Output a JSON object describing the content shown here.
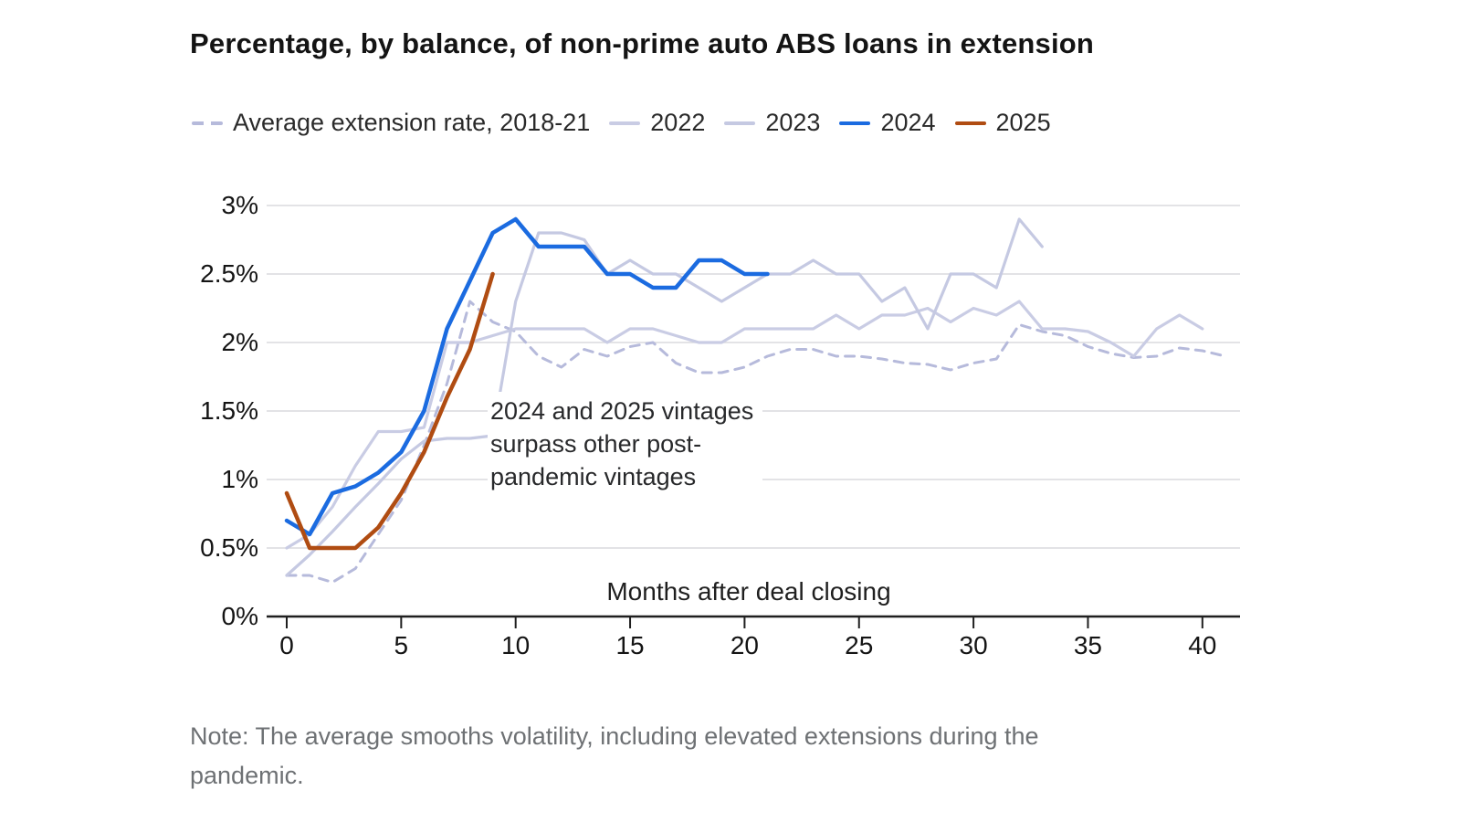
{
  "title": "Percentage, by balance, of non-prime auto ABS loans in extension",
  "legend": {
    "items": [
      {
        "label": "Average extension rate, 2018-21",
        "color": "#b6badb",
        "style": "dashed"
      },
      {
        "label": "2022",
        "color": "#c9cce4",
        "style": "solid"
      },
      {
        "label": "2023",
        "color": "#c5c9e2",
        "style": "solid"
      },
      {
        "label": "2024",
        "color": "#1b6be0",
        "style": "solid"
      },
      {
        "label": "2025",
        "color": "#b04c12",
        "style": "solid"
      }
    ]
  },
  "annotation": {
    "lines": [
      "2024 and 2025 vintages",
      "surpass other post-",
      "pandemic vintages"
    ]
  },
  "note": {
    "lines": [
      "Note: The average smooths volatility, including elevated extensions during the",
      "pandemic."
    ]
  },
  "chart_data": {
    "type": "line",
    "title": "Percentage, by balance, of non-prime auto ABS loans in extension",
    "xlabel": "Months after deal closing",
    "ylabel": "",
    "xlim": [
      0,
      41
    ],
    "ylim": [
      0,
      3
    ],
    "grid": "horizontal",
    "legend_position": "top",
    "xticks": {
      "values": [
        0,
        5,
        10,
        15,
        20,
        25,
        30,
        35,
        40
      ],
      "labels": [
        "0",
        "5",
        "10",
        "15",
        "20",
        "25",
        "30",
        "35",
        "40"
      ]
    },
    "yticks": {
      "values": [
        0,
        0.5,
        1,
        1.5,
        2,
        2.5,
        3
      ],
      "labels": [
        "0%",
        "0.5%",
        "1%",
        "1.5%",
        "2%",
        "2.5%",
        "3%"
      ]
    },
    "x_unit": "months after deal closing",
    "series": [
      {
        "name": "Average extension rate, 2018-21",
        "color": "#b6badb",
        "dash": true,
        "width": 3,
        "start_month": 0,
        "values": [
          0.3,
          0.3,
          0.25,
          0.35,
          0.6,
          0.85,
          1.25,
          1.7,
          2.3,
          2.15,
          2.08,
          1.9,
          1.82,
          1.95,
          1.9,
          1.97,
          2.0,
          1.85,
          1.78,
          1.78,
          1.82,
          1.9,
          1.95,
          1.95,
          1.9,
          1.9,
          1.88,
          1.85,
          1.84,
          1.8,
          1.85,
          1.88,
          2.13,
          2.08,
          2.05,
          1.97,
          1.92,
          1.89,
          1.9,
          1.96,
          1.94,
          1.9
        ]
      },
      {
        "name": "2022",
        "color": "#c9cce4",
        "dash": false,
        "width": 3.2,
        "start_month": 0,
        "values": [
          0.5,
          0.6,
          0.8,
          1.1,
          1.35,
          1.35,
          1.38,
          2.0,
          2.0,
          2.05,
          2.1,
          2.1,
          2.1,
          2.1,
          2.0,
          2.1,
          2.1,
          2.05,
          2.0,
          2.0,
          2.1,
          2.1,
          2.1,
          2.1,
          2.2,
          2.1,
          2.2,
          2.2,
          2.25,
          2.15,
          2.25,
          2.2,
          2.3,
          2.1,
          2.1,
          2.08,
          2.0,
          1.9,
          2.1,
          2.2,
          2.1
        ]
      },
      {
        "name": "2023",
        "color": "#c5c9e2",
        "dash": false,
        "width": 3.2,
        "start_month": 0,
        "values": [
          0.3,
          0.45,
          0.62,
          0.8,
          0.97,
          1.15,
          1.28,
          1.3,
          1.3,
          1.32,
          2.3,
          2.8,
          2.8,
          2.75,
          2.5,
          2.6,
          2.5,
          2.5,
          2.4,
          2.3,
          2.4,
          2.5,
          2.5,
          2.6,
          2.5,
          2.5,
          2.3,
          2.4,
          2.1,
          2.5,
          2.5,
          2.4,
          2.9,
          2.7
        ]
      },
      {
        "name": "2024",
        "color": "#1b6be0",
        "dash": false,
        "width": 4.5,
        "start_month": 0,
        "values": [
          0.7,
          0.6,
          0.9,
          0.95,
          1.05,
          1.2,
          1.5,
          2.1,
          2.45,
          2.8,
          2.9,
          2.7,
          2.7,
          2.7,
          2.5,
          2.5,
          2.4,
          2.4,
          2.6,
          2.6,
          2.5,
          2.5
        ]
      },
      {
        "name": "2025",
        "color": "#b04c12",
        "dash": false,
        "width": 4.5,
        "start_month": 0,
        "values": [
          0.9,
          0.5,
          0.5,
          0.5,
          0.65,
          0.9,
          1.2,
          1.6,
          1.95,
          2.5
        ]
      }
    ]
  }
}
